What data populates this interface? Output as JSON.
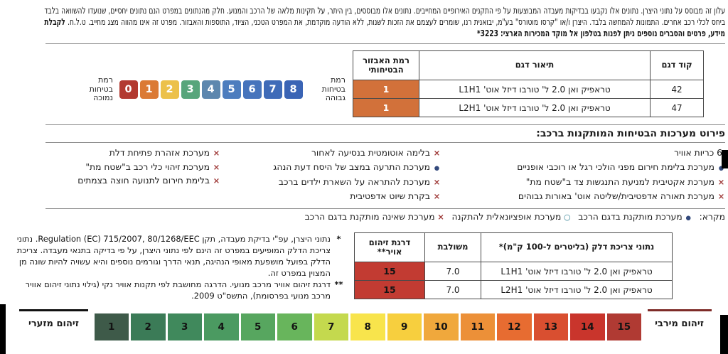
{
  "disclaimer": {
    "text": "עלון זה מבוסס על נתוני היצרן. נתונים אלו נקבעו בבדיקות מעבדה המבוצעות על פי התקנים האירופיים המחייבים. נתונים אלו מבוססים, בין היתר, על תקינות מלאה של הרכב והמנוע. חלק מהנתונים במפרט הנם נתונים יחסיים, שנועדו להשוואה בלבד ביחס לכלי רכב אחרים. התמונות להמחשה בלבד. היצרן ו/או \"קרסו מוטורס\" בע\"מ, יבואנית רנו, שומרים לעצמם את הזכות לשנות, ללא הודעה מוקדמת, את המפרט הטכני, הציוד, התוספות והאבזור. מפרט זה אינו מהווה מצג מחייב. ט.ל.ח.",
    "bold_text": "לקבלת מידע, פרטים והסברים נוספים ניתן לפנות בטלפון אל מוקד המכירות הארצי: 3223*"
  },
  "model_table": {
    "headers": {
      "code": "קוד דגם",
      "desc": "תיאור דגם",
      "level": "רמת האבזור הבטיחותי"
    },
    "rows": [
      {
        "code": "42",
        "desc": "טראפיק ואן 2.0 ל' טורבו דיזל אוט' L1H1",
        "level": "1"
      },
      {
        "code": "47",
        "desc": "טראפיק ואן 2.0 ל' טורבו דיזל אוט' L2H1",
        "level": "1"
      }
    ],
    "level_cell_color": "#d2713a"
  },
  "safety_scale": {
    "low_label": "רמת בטיחות נמוכה",
    "high_label": "רמת בטיחות גבוהה",
    "values": [
      "0",
      "1",
      "2",
      "3",
      "4",
      "5",
      "6",
      "7",
      "8"
    ],
    "colors": [
      "#b23a31",
      "#db7a35",
      "#ecc14a",
      "#57a57b",
      "#5d87ae",
      "#4d7dbe",
      "#4674bc",
      "#3f6bb8",
      "#3a64b5"
    ]
  },
  "systems": {
    "title": "פירוט מערכות הבטיחות המותקנות ברכב:",
    "columns": [
      {
        "items": [
          {
            "marker": "none",
            "text": "6 כריות אוויר"
          },
          {
            "marker": "dot",
            "text": "מערכת בלימת חירום מפני הולכי רגל או רוכבי אופניים"
          },
          {
            "marker": "x",
            "text": "מערכת אקטיבית למניעת התנגשות צד ב\"שטח מת\""
          },
          {
            "marker": "x",
            "text": "מערכת תאורה אדפטיבית/שליטה אוט' באורות גבוהים"
          }
        ]
      },
      {
        "items": [
          {
            "marker": "x",
            "text": "בלימה אוטומטית בנסיעה לאחור"
          },
          {
            "marker": "dot",
            "text": "מערכת התרעה במצב של היסח דעת הנהג"
          },
          {
            "marker": "x",
            "text": "מערכת להתראה על השארת ילדים ברכב"
          },
          {
            "marker": "x",
            "text": "בקרת שיוט אדפטיבית"
          }
        ]
      },
      {
        "items": [
          {
            "marker": "x",
            "text": "מערכת אזהרת פתיחת דלת"
          },
          {
            "marker": "x",
            "text": "מערכת זיהוי כלי רכב ב\"שטח מת\""
          },
          {
            "marker": "x",
            "text": "בלימת חירום לתנועה חוצה בצמתים"
          }
        ]
      }
    ]
  },
  "legend": {
    "label": "מקרא:",
    "items": [
      {
        "marker": "dot",
        "text": "מערכת מותקנת בדגם הרכב"
      },
      {
        "marker": "circle",
        "text": "מערכת אופציונאלית להתקנה"
      },
      {
        "marker": "x",
        "text": "מערכת שאינה מותקנת בדגם הרכב"
      }
    ]
  },
  "fuel_table": {
    "headers": {
      "desc": "נתוני צריכת דלק (בליטרים ל-100 ק\"מ)*",
      "combined": "משולבת",
      "pollution": "דרגת זיהום אויר**"
    },
    "rows": [
      {
        "desc": "טראפיק ואן 2.0 ל' טורבו דיזל אוט' L1H1",
        "combined": "7.0",
        "pollution": "15"
      },
      {
        "desc": "טראפיק ואן 2.0 ל' טורבו דיזל אוט' L2H1",
        "combined": "7.0",
        "pollution": "15"
      }
    ],
    "pollution_cell_color": "#c23b32"
  },
  "footnotes": [
    {
      "marker": "*",
      "text": "נתוני היצרן, עפ\"י בדיקת מעבדה, תקן Regulation (EC) 715/2007, 80/1268/EEC. נתוני צריכת הדלק המופיעים במפרט זה הינם לפי נתוני היצרן, על פי בדיקה בתנאי מעבדה. צריכת הדלק בפועל מושפעת מאופי הנהיגה, תנאי הדרך וגורמים נוספים והיא עשויה להיות שונה מן המצוין במפרט זה."
    },
    {
      "marker": "**",
      "text": "דרגת זיהום אוויר מרכב מנועי. הדרגה מחושבת לפי תקנות אוויר נקי (גילוי נתוני זיהום אוויר מרכב מנועי בפרסומת), התשס\"ט 2009."
    }
  ],
  "pollution_scale": {
    "min_label": "זיהום מזערי",
    "max_label": "זיהום מירבי",
    "values": [
      "1",
      "2",
      "3",
      "4",
      "5",
      "6",
      "7",
      "8",
      "9",
      "10",
      "11",
      "12",
      "13",
      "14",
      "15"
    ],
    "colors": [
      "#3e5a49",
      "#3b7b57",
      "#40895c",
      "#4b9a61",
      "#57a65f",
      "#68b55c",
      "#c4d94e",
      "#f8e44c",
      "#f7cf3e",
      "#f0a83c",
      "#ec9038",
      "#e76c31",
      "#d94f30",
      "#c9352c",
      "#b03a33"
    ]
  }
}
